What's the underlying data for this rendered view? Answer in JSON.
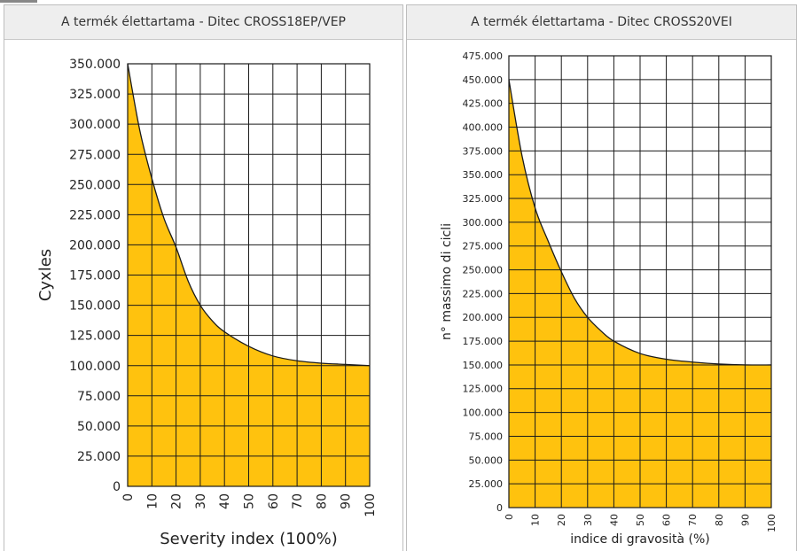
{
  "panels": [
    {
      "header": "A termék élettartama - Ditec CROSS18EP/VEP"
    },
    {
      "header": "A termék élettartama - Ditec CROSS20VEI"
    }
  ],
  "colors": {
    "fill": "#FFC20E",
    "curve": "#1a1a1a",
    "grid": "#1a1a1a"
  },
  "chart_data": [
    {
      "type": "area",
      "title": "A termék élettartama - Ditec CROSS18EP/VEP",
      "xlabel": "Severity index (100%)",
      "ylabel": "Cyxles",
      "xlim": [
        0,
        100
      ],
      "ylim": [
        0,
        350000
      ],
      "x_ticks": [
        0,
        10,
        20,
        30,
        40,
        50,
        60,
        70,
        80,
        90,
        100
      ],
      "x_tick_labels": [
        "0",
        "10",
        "20",
        "30",
        "40",
        "50",
        "60",
        "70",
        "80",
        "90",
        "100"
      ],
      "y_ticks": [
        0,
        25000,
        50000,
        75000,
        100000,
        125000,
        150000,
        175000,
        200000,
        225000,
        250000,
        275000,
        300000,
        325000,
        350000
      ],
      "y_tick_labels": [
        "0",
        "25.000",
        "50.000",
        "75.000",
        "100.000",
        "125.000",
        "150.000",
        "175.000",
        "200.000",
        "225.000",
        "250.000",
        "275.000",
        "300.000",
        "325.000",
        "350.000"
      ],
      "grid": true,
      "x": [
        0,
        5,
        10,
        15,
        20,
        25,
        30,
        35,
        40,
        50,
        60,
        70,
        80,
        90,
        100
      ],
      "values": [
        350000,
        295000,
        255000,
        222000,
        198000,
        170000,
        150000,
        137000,
        128000,
        116000,
        108000,
        104000,
        102000,
        101000,
        100000
      ]
    },
    {
      "type": "area",
      "title": "A termék élettartama - Ditec CROSS20VEI",
      "xlabel": "indice di gravosità (%)",
      "ylabel": "n° massimo di cicli",
      "xlim": [
        0,
        100
      ],
      "ylim": [
        0,
        475000
      ],
      "x_ticks": [
        0,
        10,
        20,
        30,
        40,
        50,
        60,
        70,
        80,
        90,
        100
      ],
      "x_tick_labels": [
        "0",
        "10",
        "20",
        "30",
        "40",
        "50",
        "60",
        "70",
        "80",
        "90",
        "100"
      ],
      "y_ticks": [
        0,
        25000,
        50000,
        75000,
        100000,
        125000,
        150000,
        175000,
        200000,
        225000,
        250000,
        275000,
        300000,
        325000,
        350000,
        375000,
        400000,
        425000,
        450000,
        475000
      ],
      "y_tick_labels": [
        "0",
        "25.000",
        "50.000",
        "75.000",
        "100.000",
        "125.000",
        "150.000",
        "175.000",
        "200.000",
        "225.000",
        "250.000",
        "275.000",
        "300.000",
        "325.000",
        "350.000",
        "375.000",
        "400.000",
        "425.000",
        "450.000",
        "475.000"
      ],
      "grid": true,
      "x": [
        0,
        5,
        10,
        15,
        20,
        25,
        30,
        35,
        40,
        50,
        60,
        70,
        80,
        90,
        100
      ],
      "values": [
        450000,
        370000,
        315000,
        280000,
        248000,
        220000,
        200000,
        186000,
        175000,
        162000,
        156000,
        153000,
        151000,
        150000,
        150000
      ]
    }
  ]
}
